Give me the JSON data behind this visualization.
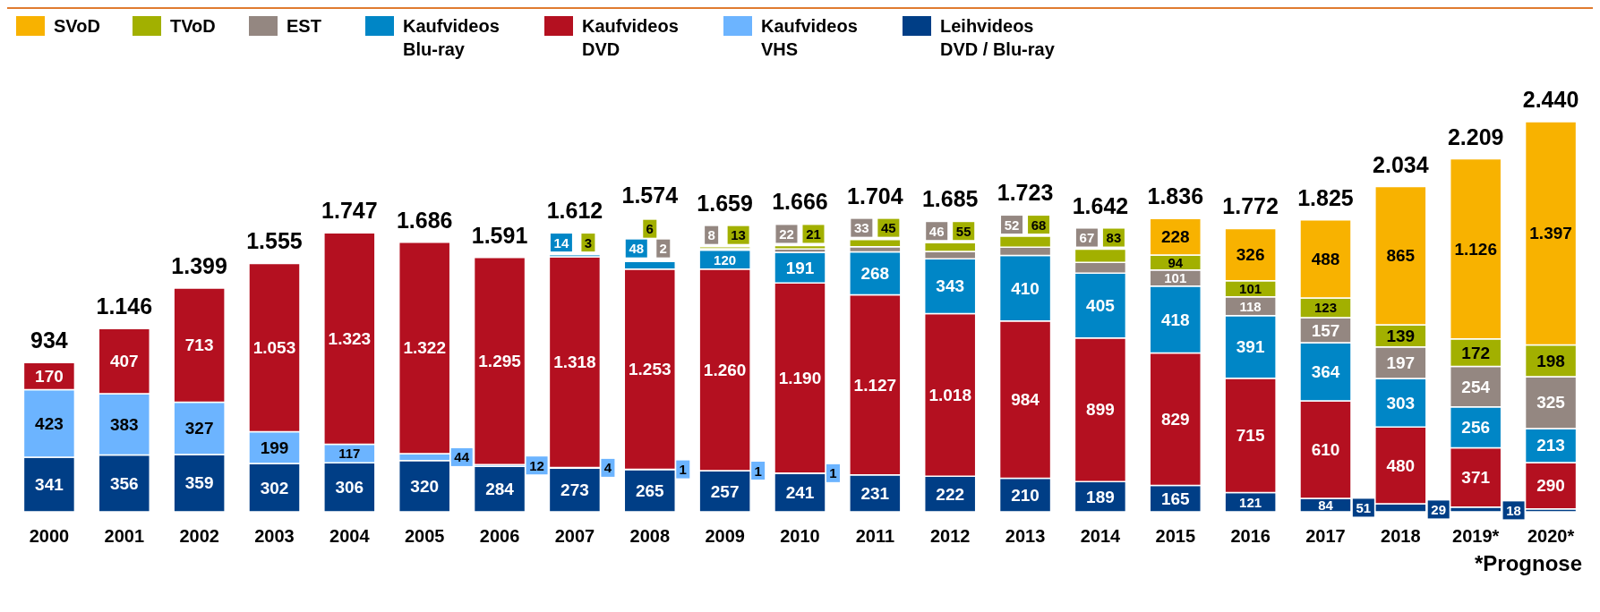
{
  "chart_data": {
    "type": "bar",
    "stacked": true,
    "legend": "top left",
    "categories": [
      "2000",
      "2001",
      "2002",
      "2003",
      "2004",
      "2005",
      "2006",
      "2007",
      "2008",
      "2009",
      "2010",
      "2011",
      "2012",
      "2013",
      "2014",
      "2015",
      "2016",
      "2017",
      "2018",
      "2019*",
      "2020*"
    ],
    "series": [
      {
        "name": "Leihvideos DVD / Blu-ray",
        "color": "#003e86",
        "values": [
          341,
          356,
          359,
          302,
          306,
          320,
          284,
          273,
          265,
          257,
          241,
          231,
          222,
          210,
          189,
          165,
          121,
          84,
          51,
          29,
          18
        ],
        "value_labels": [
          "341",
          "356",
          "359",
          "302",
          "306",
          "320",
          "284",
          "273",
          "265",
          "257",
          "241",
          "231",
          "222",
          "210",
          "189",
          "165",
          "121",
          "84",
          "51",
          "29",
          "18"
        ]
      },
      {
        "name": "Kaufvideos VHS",
        "color": "#6cb4ff",
        "values": [
          423,
          383,
          327,
          199,
          117,
          44,
          12,
          4,
          1,
          1,
          1,
          null,
          null,
          null,
          null,
          null,
          null,
          null,
          null,
          null,
          null
        ],
        "value_labels": [
          "423",
          "383",
          "327",
          "199",
          "117",
          "44",
          "12",
          "4",
          "1",
          "1",
          "1",
          null,
          null,
          null,
          null,
          null,
          null,
          null,
          null,
          null,
          null
        ]
      },
      {
        "name": "Kaufvideos DVD",
        "color": "#b41020",
        "values": [
          170,
          407,
          713,
          1053,
          1323,
          1322,
          1295,
          1318,
          1253,
          1260,
          1190,
          1127,
          1018,
          984,
          899,
          829,
          715,
          610,
          480,
          371,
          290
        ],
        "value_labels": [
          "170",
          "407",
          "713",
          "1.053",
          "1.323",
          "1.322",
          "1.295",
          "1.318",
          "1.253",
          "1.260",
          "1.190",
          "1.127",
          "1.018",
          "984",
          "899",
          "829",
          "715",
          "610",
          "480",
          "371",
          "290"
        ]
      },
      {
        "name": "Kaufvideos Blu-ray",
        "color": "#0086c6",
        "values": [
          null,
          null,
          null,
          null,
          null,
          null,
          null,
          14,
          48,
          120,
          191,
          268,
          343,
          410,
          405,
          418,
          391,
          364,
          303,
          256,
          213
        ],
        "value_labels": [
          null,
          null,
          null,
          null,
          null,
          null,
          null,
          "14",
          "48",
          "120",
          "191",
          "268",
          "343",
          "410",
          "405",
          "418",
          "391",
          "364",
          "303",
          "256",
          "213"
        ]
      },
      {
        "name": "EST",
        "color": "#948781",
        "values": [
          null,
          null,
          null,
          null,
          null,
          null,
          null,
          null,
          2,
          8,
          22,
          33,
          46,
          52,
          67,
          101,
          118,
          157,
          197,
          254,
          325
        ],
        "value_labels": [
          null,
          null,
          null,
          null,
          null,
          null,
          null,
          null,
          "2",
          "8",
          "22",
          "33",
          "46",
          "52",
          "67",
          "101",
          "118",
          "157",
          "197",
          "254",
          "325"
        ]
      },
      {
        "name": "TVoD",
        "color": "#a2b000",
        "values": [
          null,
          null,
          null,
          null,
          null,
          null,
          null,
          3,
          6,
          13,
          21,
          45,
          55,
          68,
          83,
          94,
          101,
          123,
          139,
          172,
          198
        ],
        "value_labels": [
          null,
          null,
          null,
          null,
          null,
          null,
          null,
          "3",
          "6",
          "13",
          "21",
          "45",
          "55",
          "68",
          "83",
          "94",
          "101",
          "123",
          "139",
          "172",
          "198"
        ]
      },
      {
        "name": "SVoD",
        "color": "#f8b200",
        "values": [
          null,
          null,
          null,
          null,
          null,
          null,
          null,
          null,
          null,
          null,
          null,
          null,
          null,
          null,
          null,
          228,
          326,
          488,
          865,
          1126,
          1397
        ],
        "value_labels": [
          null,
          null,
          null,
          null,
          null,
          null,
          null,
          null,
          null,
          null,
          null,
          null,
          null,
          null,
          null,
          "228",
          "326",
          "488",
          "865",
          "1.126",
          "1.397"
        ]
      }
    ],
    "totals": [
      "934",
      "1.146",
      "1.399",
      "1.555",
      "1.747",
      "1.686",
      "1.591",
      "1.612",
      "1.574",
      "1.659",
      "1.666",
      "1.704",
      "1.685",
      "1.723",
      "1.642",
      "1.836",
      "1.772",
      "1.825",
      "2.034",
      "2.209",
      "2.440"
    ],
    "annotations": [
      "*Prognose"
    ]
  }
}
